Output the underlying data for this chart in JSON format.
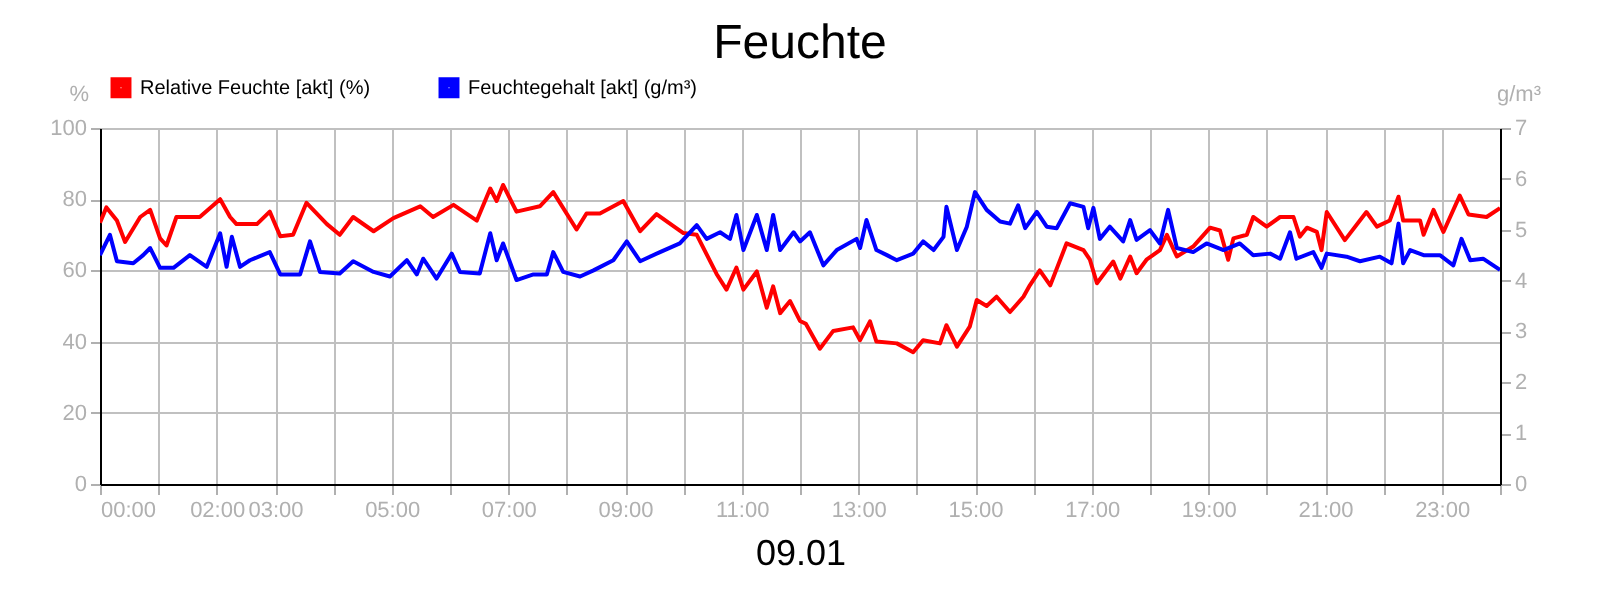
{
  "chart_data": {
    "type": "line",
    "title": "Feuchte",
    "xlabel": "09.01",
    "ylabel": "%",
    "y2label": "g/m³",
    "xlim": [
      0,
      24
    ],
    "xticks": [
      {
        "value": 0,
        "label": "00:00"
      },
      {
        "value": 1,
        "label": null
      },
      {
        "value": 2,
        "label": "02:00"
      },
      {
        "value": 3,
        "label": "03:00"
      },
      {
        "value": 4,
        "label": null
      },
      {
        "value": 5,
        "label": "05:00"
      },
      {
        "value": 6,
        "label": null
      },
      {
        "value": 7,
        "label": "07:00"
      },
      {
        "value": 8,
        "label": null
      },
      {
        "value": 9,
        "label": "09:00"
      },
      {
        "value": 10,
        "label": null
      },
      {
        "value": 11,
        "label": "11:00"
      },
      {
        "value": 12,
        "label": null
      },
      {
        "value": 13,
        "label": "13:00"
      },
      {
        "value": 14,
        "label": null
      },
      {
        "value": 15,
        "label": "15:00"
      },
      {
        "value": 16,
        "label": null
      },
      {
        "value": 17,
        "label": "17:00"
      },
      {
        "value": 18,
        "label": null
      },
      {
        "value": 19,
        "label": "19:00"
      },
      {
        "value": 20,
        "label": null
      },
      {
        "value": 21,
        "label": "21:00"
      },
      {
        "value": 22,
        "label": null
      },
      {
        "value": 23,
        "label": "23:00"
      },
      {
        "value": 24,
        "label": null
      }
    ],
    "ylim": [
      0,
      100
    ],
    "yticks": [
      0,
      20,
      40,
      60,
      80,
      100
    ],
    "y2lim": [
      0,
      7
    ],
    "y2ticks": [
      0,
      1,
      2,
      3,
      4,
      5,
      6,
      7
    ],
    "grid": true,
    "legend": "top left",
    "series": [
      {
        "name": "Relative Feuchte [akt] (%)",
        "color": "#ff0000",
        "x": [
          0,
          0.11,
          0.29,
          0.43,
          0.69,
          0.86,
          1.03,
          1.14,
          1.31,
          1.71,
          2.06,
          2.23,
          2.34,
          2.69,
          2.91,
          3.09,
          3.31,
          3.54,
          3.89,
          4.11,
          4.34,
          4.69,
          5.03,
          5.49,
          5.71,
          6.06,
          6.46,
          6.69,
          6.8,
          6.91,
          7.14,
          7.54,
          7.77,
          8.17,
          8.34,
          8.57,
          8.97,
          9.26,
          9.54,
          10.0,
          10.23,
          10.57,
          10.74,
          10.91,
          11.03,
          11.26,
          11.43,
          11.54,
          11.66,
          11.83,
          12.0,
          12.1,
          12.34,
          12.57,
          12.91,
          13.03,
          13.2,
          13.31,
          13.66,
          13.94,
          14.11,
          14.4,
          14.51,
          14.69,
          14.91,
          15.03,
          15.2,
          15.37,
          15.6,
          15.83,
          15.94,
          16.11,
          16.29,
          16.57,
          16.86,
          16.97,
          17.09,
          17.37,
          17.49,
          17.66,
          17.77,
          17.94,
          18.17,
          18.29,
          18.46,
          18.74,
          19.03,
          19.2,
          19.34,
          19.43,
          19.66,
          19.77,
          20.0,
          20.23,
          20.46,
          20.57,
          20.69,
          20.86,
          20.94,
          21.03,
          21.34,
          21.71,
          21.89,
          22.11,
          22.26,
          22.34,
          22.63,
          22.69,
          22.86,
          23.03,
          23.31,
          23.46,
          23.77,
          24.0
        ],
        "values": [
          73.4,
          77.7,
          74,
          68,
          75,
          77,
          69,
          67,
          75,
          75,
          80,
          75,
          73,
          73,
          76.5,
          69.6,
          70,
          79,
          73,
          70,
          75,
          71,
          74.7,
          78,
          75,
          78.4,
          74,
          83,
          79.5,
          84,
          76.5,
          78,
          82,
          71.5,
          76,
          76,
          79.5,
          71,
          75.8,
          70.5,
          70,
          59,
          54.6,
          60.8,
          54.6,
          59.7,
          49.5,
          55.5,
          48,
          51.4,
          45.8,
          45,
          38,
          43,
          44,
          40.4,
          45.7,
          40,
          39.5,
          37,
          40.4,
          39.5,
          44.6,
          38.6,
          44.2,
          51.7,
          50,
          52.6,
          48.3,
          52.6,
          55.8,
          60,
          55.8,
          67.6,
          65.7,
          63,
          56.4,
          62.5,
          57.7,
          63.9,
          59.2,
          63,
          65.7,
          70,
          63.9,
          66.7,
          72,
          71.2,
          63,
          69,
          70,
          75,
          72.3,
          75,
          75,
          69.5,
          72,
          70.8,
          65.7,
          76.4,
          68.5,
          76.4,
          72.3,
          74,
          80.7,
          74,
          74,
          70,
          77,
          70.8,
          81,
          75.7,
          75,
          77.5
        ]
      },
      {
        "name": "Feuchtegehalt [akt] (g/m³)",
        "color": "#0000ff",
        "axis": "y2",
        "x": [
          0,
          0.17,
          0.29,
          0.57,
          0.74,
          0.86,
          1.03,
          1.26,
          1.54,
          1.83,
          2.06,
          2.17,
          2.26,
          2.4,
          2.57,
          2.91,
          3.09,
          3.43,
          3.6,
          3.77,
          4.11,
          4.34,
          4.69,
          4.97,
          5.26,
          5.43,
          5.54,
          5.77,
          6.03,
          6.17,
          6.51,
          6.69,
          6.8,
          6.91,
          7.14,
          7.43,
          7.66,
          7.77,
          7.94,
          8.23,
          8.46,
          8.8,
          9.03,
          9.26,
          9.6,
          9.94,
          10.23,
          10.4,
          10.63,
          10.8,
          10.91,
          11.03,
          11.26,
          11.43,
          11.54,
          11.66,
          11.89,
          12.0,
          12.17,
          12.4,
          12.63,
          12.97,
          13.03,
          13.14,
          13.31,
          13.49,
          13.66,
          13.94,
          14.11,
          14.29,
          14.46,
          14.51,
          14.69,
          14.86,
          15.0,
          15.2,
          15.43,
          15.6,
          15.74,
          15.86,
          16.06,
          16.23,
          16.4,
          16.63,
          16.86,
          16.94,
          17.03,
          17.14,
          17.31,
          17.54,
          17.66,
          17.77,
          18.0,
          18.17,
          18.31,
          18.46,
          18.74,
          18.97,
          19.26,
          19.54,
          19.77,
          20.06,
          20.23,
          20.4,
          20.51,
          20.8,
          20.94,
          21.03,
          21.37,
          21.6,
          21.94,
          22.14,
          22.26,
          22.34,
          22.46,
          22.69,
          22.97,
          23.2,
          23.34,
          23.49,
          23.71,
          24.0
        ],
        "values": [
          4.5,
          4.9,
          4.38,
          4.34,
          4.5,
          4.64,
          4.25,
          4.25,
          4.5,
          4.27,
          4.93,
          4.27,
          4.86,
          4.27,
          4.4,
          4.56,
          4.12,
          4.12,
          4.77,
          4.17,
          4.14,
          4.38,
          4.17,
          4.08,
          4.4,
          4.12,
          4.43,
          4.04,
          4.53,
          4.17,
          4.14,
          4.93,
          4.4,
          4.73,
          4.01,
          4.12,
          4.12,
          4.56,
          4.17,
          4.08,
          4.2,
          4.4,
          4.77,
          4.38,
          4.56,
          4.73,
          5.09,
          4.82,
          4.95,
          4.82,
          5.29,
          4.6,
          5.29,
          4.6,
          5.29,
          4.6,
          4.95,
          4.77,
          4.95,
          4.3,
          4.6,
          4.82,
          4.64,
          5.19,
          4.6,
          4.5,
          4.4,
          4.53,
          4.77,
          4.6,
          4.86,
          5.45,
          4.6,
          5.06,
          5.74,
          5.39,
          5.16,
          5.12,
          5.48,
          5.03,
          5.35,
          5.06,
          5.03,
          5.52,
          5.45,
          5.03,
          5.43,
          4.82,
          5.06,
          4.77,
          5.19,
          4.8,
          4.99,
          4.73,
          5.39,
          4.64,
          4.56,
          4.73,
          4.6,
          4.73,
          4.5,
          4.53,
          4.43,
          4.95,
          4.43,
          4.56,
          4.25,
          4.53,
          4.47,
          4.38,
          4.47,
          4.34,
          5.12,
          4.34,
          4.6,
          4.5,
          4.5,
          4.3,
          4.82,
          4.4,
          4.43,
          4.21
        ]
      }
    ]
  }
}
